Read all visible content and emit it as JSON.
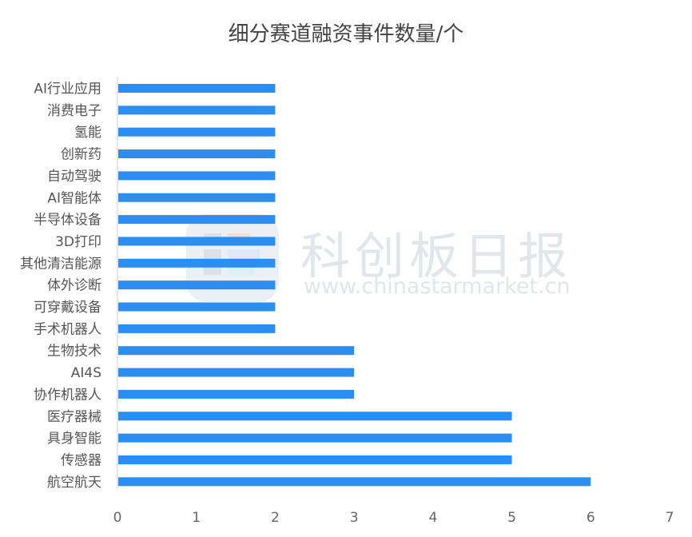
{
  "chart_data": {
    "type": "bar",
    "orientation": "horizontal",
    "title": "细分赛道融资事件数量/个",
    "categories": [
      "AI行业应用",
      "消费电子",
      "氢能",
      "创新药",
      "自动驾驶",
      "AI智能体",
      "半导体设备",
      "3D打印",
      "其他清洁能源",
      "体外诊断",
      "可穿戴设备",
      "手术机器人",
      "生物技术",
      "AI4S",
      "协作机器人",
      "医疗器械",
      "具身智能",
      "传感器",
      "航空航天"
    ],
    "values": [
      2,
      2,
      2,
      2,
      2,
      2,
      2,
      2,
      2,
      2,
      2,
      2,
      3,
      3,
      3,
      5,
      5,
      5,
      6
    ],
    "xlim": [
      0,
      7
    ],
    "xticks": [
      0,
      1,
      2,
      3,
      4,
      5,
      6,
      7
    ],
    "grid": false,
    "legend": "none",
    "bar_color": "#2b8ef0"
  },
  "watermark": {
    "text": "科创板日报",
    "url": "www.chinastarmarket.cn"
  },
  "colors": {
    "title": "#444444",
    "label": "#555555",
    "axis": "#cfcfcf",
    "watermark": "#e2e5ea"
  }
}
